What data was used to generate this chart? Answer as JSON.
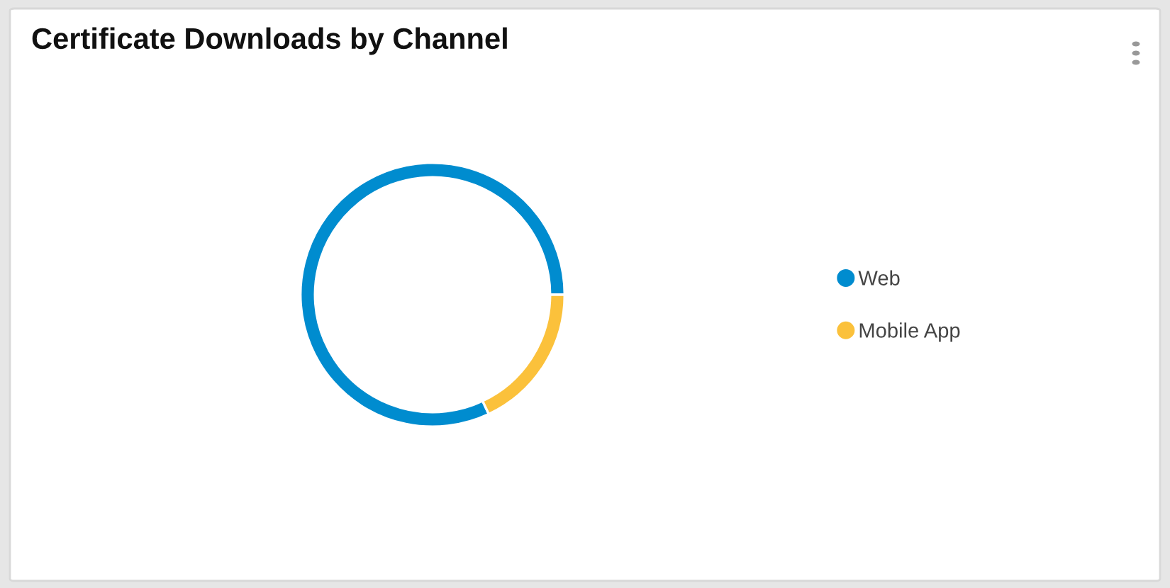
{
  "chart_data": {
    "type": "donut",
    "title": "Certificate Downloads by Channel",
    "categories": [
      "Web",
      "Mobile App"
    ],
    "values": [
      82,
      18
    ],
    "colors": [
      "#008ccf",
      "#fbc13b"
    ],
    "legend": "right"
  }
}
